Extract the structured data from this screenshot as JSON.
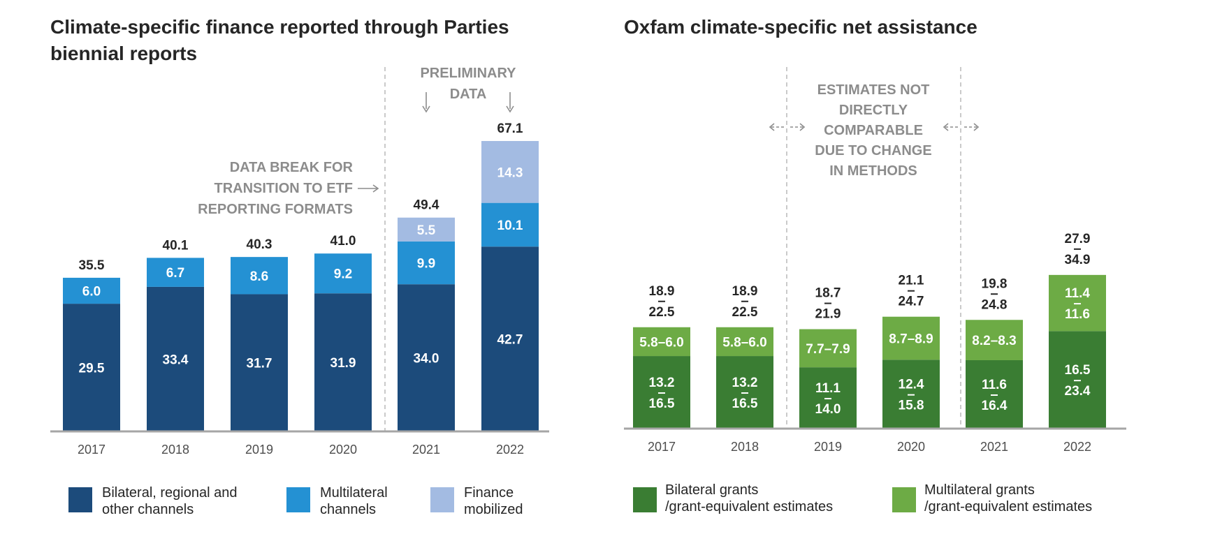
{
  "colors": {
    "bilateral": "#1c4b7b",
    "multilateral": "#2491d3",
    "mobilized": "#a3bbe2",
    "green_dark": "#3a7d33",
    "green_light": "#6dab45",
    "axis": "#a6a6a6",
    "divider": "#b3b3b3",
    "annotation": "#8c8c8c",
    "text": "#262626"
  },
  "chart_data": [
    {
      "type": "bar",
      "stacked": true,
      "title_lines": [
        "Climate-specific finance reported through Parties",
        "biennial reports"
      ],
      "categories": [
        "2017",
        "2018",
        "2019",
        "2020",
        "2021",
        "2022"
      ],
      "series": [
        {
          "name": "Bilateral, regional and other channels",
          "values": [
            29.5,
            33.4,
            31.7,
            31.9,
            34.0,
            42.7
          ],
          "labels": [
            "29.5",
            "33.4",
            "31.7",
            "31.9",
            "34.0",
            "42.7"
          ]
        },
        {
          "name": "Multilateral channels",
          "values": [
            6.0,
            6.7,
            8.6,
            9.2,
            9.9,
            10.1
          ],
          "labels": [
            "6.0",
            "6.7",
            "8.6",
            "9.2",
            "9.9",
            "10.1"
          ]
        },
        {
          "name": "Finance mobilized",
          "values": [
            0,
            0,
            0,
            0,
            5.5,
            14.3
          ],
          "labels": [
            "",
            "",
            "",
            "",
            "5.5",
            "14.3"
          ]
        }
      ],
      "totals": [
        "35.5",
        "40.1",
        "40.3",
        "41.0",
        "49.4",
        "67.1"
      ],
      "legend": [
        {
          "lines": [
            "Bilateral, regional and",
            "other channels"
          ],
          "color_key": "bilateral"
        },
        {
          "lines": [
            "Multilateral",
            "channels"
          ],
          "color_key": "multilateral"
        },
        {
          "lines": [
            "Finance",
            "mobilized"
          ],
          "color_key": "mobilized"
        }
      ],
      "annotations": {
        "data_break": [
          "DATA BREAK FOR",
          "TRANSITION TO ETF",
          "REPORTING FORMATS"
        ],
        "preliminary": [
          "PRELIMINARY",
          "DATA"
        ]
      },
      "ylim": [
        0,
        72
      ],
      "grid": false
    },
    {
      "type": "bar",
      "stacked": true,
      "title": "Oxfam climate-specific net assistance",
      "categories": [
        "2017",
        "2018",
        "2019",
        "2020",
        "2021",
        "2022"
      ],
      "series": [
        {
          "name": "Bilateral grants /grant-equivalent estimates",
          "values": [
            [
              13.2,
              16.5
            ],
            [
              13.2,
              16.5
            ],
            [
              11.1,
              14.0
            ],
            [
              12.4,
              15.8
            ],
            [
              11.6,
              16.4
            ],
            [
              16.5,
              23.4
            ]
          ],
          "labels": [
            [
              "13.2",
              "16.5"
            ],
            [
              "13.2",
              "16.5"
            ],
            [
              "11.1",
              "14.0"
            ],
            [
              "12.4",
              "15.8"
            ],
            [
              "11.6",
              "16.4"
            ],
            [
              "16.5",
              "23.4"
            ]
          ]
        },
        {
          "name": "Multilateral grants /grant-equivalent estimates",
          "values": [
            [
              5.8,
              6.0
            ],
            [
              5.8,
              6.0
            ],
            [
              7.7,
              7.9
            ],
            [
              8.7,
              8.9
            ],
            [
              8.2,
              8.3
            ],
            [
              11.4,
              11.6
            ]
          ],
          "labels": [
            "5.8–6.0",
            "5.8–6.0",
            "7.7–7.9",
            "8.7–8.9",
            "8.2–8.3",
            [
              "11.4",
              "11.6"
            ]
          ]
        }
      ],
      "totals": [
        [
          "18.9",
          "22.5"
        ],
        [
          "18.9",
          "22.5"
        ],
        [
          "18.7",
          "21.9"
        ],
        [
          "21.1",
          "24.7"
        ],
        [
          "19.8",
          "24.8"
        ],
        [
          "27.9",
          "34.9"
        ]
      ],
      "legend": [
        {
          "lines": [
            "Bilateral grants",
            "/grant-equivalent estimates"
          ],
          "color_key": "green_dark"
        },
        {
          "lines": [
            "Multilateral grants",
            "/grant-equivalent estimates"
          ],
          "color_key": "green_light"
        }
      ],
      "annotations": {
        "not_comparable": [
          "ESTIMATES NOT",
          "DIRECTLY",
          "COMPARABLE",
          "DUE TO CHANGE",
          "IN METHODS"
        ]
      },
      "ylim": [
        0,
        38
      ],
      "grid": false
    }
  ]
}
